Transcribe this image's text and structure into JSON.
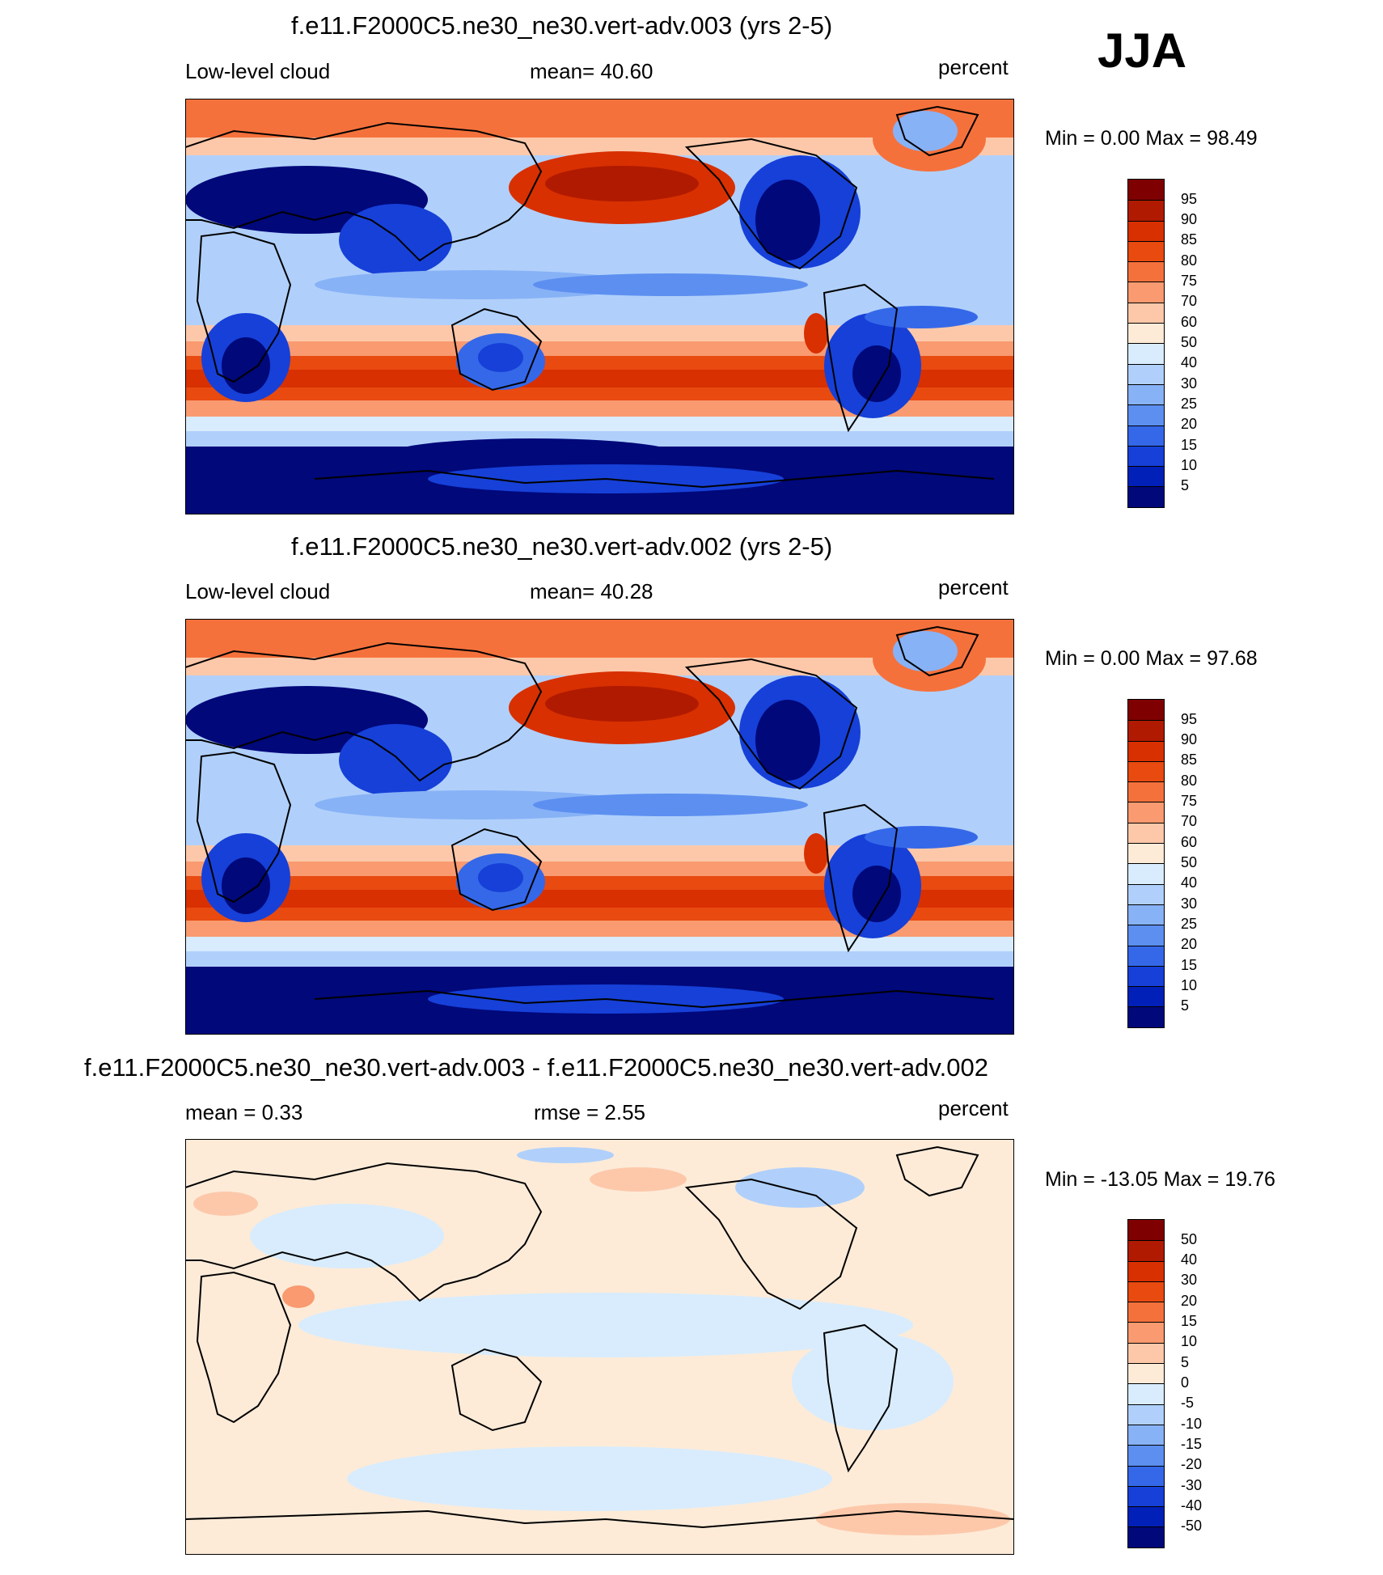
{
  "season": "JJA",
  "panels": [
    {
      "title": "f.e11.F2000C5.ne30_ne30.vert-adv.003 (yrs 2-5)",
      "left": "Low-level cloud",
      "center": "mean=  40.60",
      "right": "percent",
      "minmax": "Min =   0.00 Max =  98.49",
      "labels": [
        "95",
        "90",
        "85",
        "80",
        "75",
        "70",
        "60",
        "50",
        "40",
        "30",
        "25",
        "20",
        "15",
        "10",
        "5"
      ]
    },
    {
      "title": "f.e11.F2000C5.ne30_ne30.vert-adv.002 (yrs 2-5)",
      "left": "Low-level cloud",
      "center": "mean=  40.28",
      "right": "percent",
      "minmax": "Min =   0.00 Max =  97.68",
      "labels": [
        "95",
        "90",
        "85",
        "80",
        "75",
        "70",
        "60",
        "50",
        "40",
        "30",
        "25",
        "20",
        "15",
        "10",
        "5"
      ]
    },
    {
      "title": "f.e11.F2000C5.ne30_ne30.vert-adv.003 - f.e11.F2000C5.ne30_ne30.vert-adv.002",
      "left": "mean =   0.33",
      "center": "rmse =   2.55",
      "right": "percent",
      "minmax": "Min = -13.05 Max =  19.76",
      "labels": [
        "50",
        "40",
        "30",
        "20",
        "15",
        "10",
        "5",
        "0",
        "-5",
        "-10",
        "-15",
        "-20",
        "-30",
        "-40",
        "-50"
      ]
    }
  ],
  "colors": {
    "scale": [
      "#7f0000",
      "#b01a00",
      "#d83000",
      "#e84a10",
      "#f5713c",
      "#f99a70",
      "#fdc8aa",
      "#fdebd8",
      "#d8ecfd",
      "#b0d0fb",
      "#88b2f6",
      "#5c8ff0",
      "#3568e8",
      "#1640d8",
      "#0020b8",
      "#00087a"
    ]
  }
}
